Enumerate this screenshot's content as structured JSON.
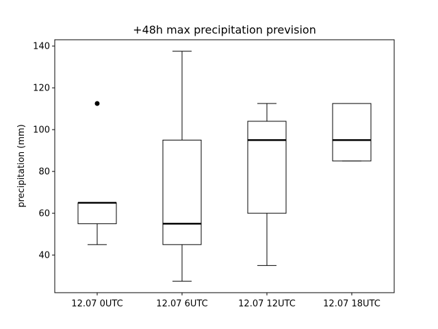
{
  "chart_data": {
    "type": "boxplot",
    "title": "+48h max precipitation prevision",
    "xlabel": "",
    "ylabel": "precipitation (mm)",
    "ylim": [
      22,
      143
    ],
    "yticks": [
      40,
      60,
      80,
      100,
      120,
      140
    ],
    "grid": false,
    "categories": [
      "12.07 0UTC",
      "12.07 6UTC",
      "12.07 12UTC",
      "12.07 18UTC"
    ],
    "boxes": [
      {
        "whisker_low": 45,
        "q1": 55,
        "median": 65,
        "q3": 65,
        "whisker_high": 65,
        "outliers": [
          112.5
        ]
      },
      {
        "whisker_low": 27.5,
        "q1": 45,
        "median": 55,
        "q3": 95,
        "whisker_high": 137.5,
        "outliers": []
      },
      {
        "whisker_low": 35,
        "q1": 60,
        "median": 95,
        "q3": 104,
        "whisker_high": 112.5,
        "outliers": []
      },
      {
        "whisker_low": 85,
        "q1": 85,
        "median": 95,
        "q3": 112.5,
        "whisker_high": 112.5,
        "outliers": []
      }
    ],
    "colors": {
      "box": "#000000",
      "median": "#000000",
      "outlier": "#000000"
    }
  }
}
